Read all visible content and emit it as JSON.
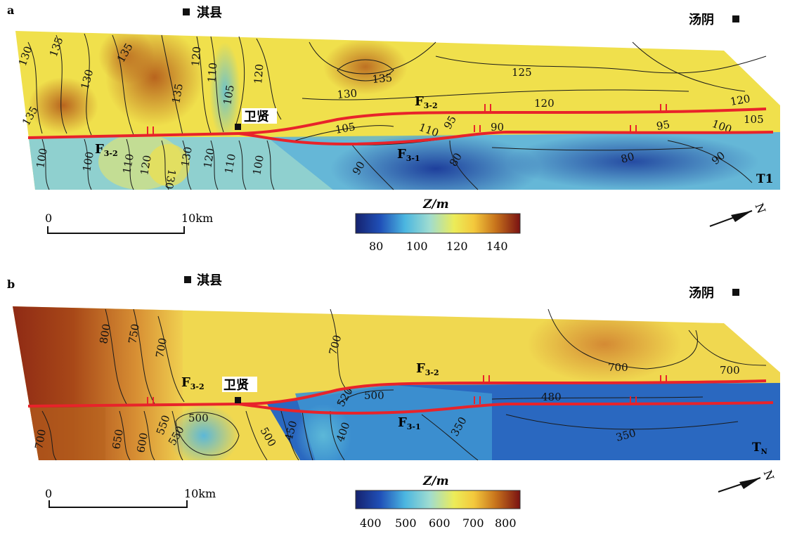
{
  "panels": [
    {
      "id": "a",
      "label": "a",
      "towns": {
        "left": "淇县",
        "right": "汤阴",
        "center": "卫贤"
      },
      "horizon_label": "T1",
      "colorbar": {
        "title": "Z/m",
        "ticks": [
          "80",
          "100",
          "120",
          "140"
        ]
      },
      "scale_bar": {
        "start": "0",
        "end": "10km"
      },
      "north": "N",
      "faults": {
        "upper": "F",
        "upper_sub": "3-2",
        "lower": "F",
        "lower_sub": "3-1",
        "west": "F",
        "west_sub": "3-2"
      },
      "contours": [
        "130",
        "135",
        "130",
        "135",
        "135",
        "120",
        "110",
        "105",
        "120",
        "130",
        "135",
        "125",
        "120",
        "120",
        "105",
        "135",
        "100",
        "100",
        "110",
        "120",
        "130",
        "130",
        "120",
        "110",
        "100",
        "105",
        "110",
        "95",
        "90",
        "95",
        "100",
        "90",
        "80",
        "80",
        "90"
      ]
    },
    {
      "id": "b",
      "label": "b",
      "towns": {
        "left": "淇县",
        "right": "汤阴",
        "center": "卫贤"
      },
      "horizon_label": "T",
      "horizon_sub": "N",
      "colorbar": {
        "title": "Z/m",
        "ticks": [
          "400",
          "500",
          "600",
          "700",
          "800"
        ]
      },
      "scale_bar": {
        "start": "0",
        "end": "10km"
      },
      "north": "N",
      "faults": {
        "upper": "F",
        "upper_sub": "3-2",
        "lower": "F",
        "lower_sub": "3-1",
        "west": "F",
        "west_sub": "3-2"
      },
      "contours": [
        "800",
        "750",
        "700",
        "700",
        "700",
        "700",
        "520",
        "500",
        "480",
        "400",
        "350",
        "350",
        "700",
        "650",
        "600",
        "550",
        "500",
        "550",
        "500",
        "450"
      ]
    }
  ],
  "colors": {
    "fault": "#e8232a",
    "contour": "#1a1a1a"
  }
}
